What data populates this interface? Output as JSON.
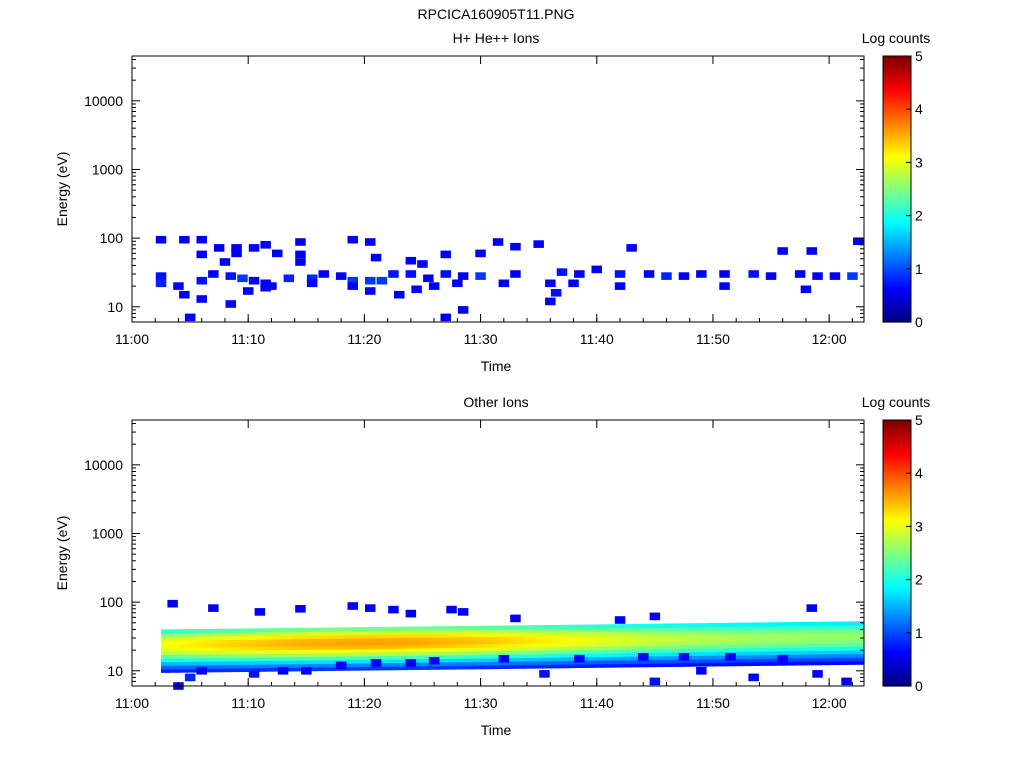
{
  "figure": {
    "title": "RPCICA160905T11.PNG"
  },
  "colorbar": {
    "label": "Log counts",
    "ticks": [
      "0",
      "1",
      "2",
      "3",
      "4",
      "5"
    ],
    "colormap": [
      "#00007f",
      "#0000ff",
      "#007fff",
      "#00ffff",
      "#7fff7f",
      "#ffff00",
      "#ff7f00",
      "#ff0000",
      "#7f0000"
    ]
  },
  "chart_data": [
    {
      "type": "heatmap",
      "title": "H+ He++ Ions",
      "xlabel": "Time",
      "ylabel": "Energy (eV)",
      "xlim": [
        "11:00",
        "12:03"
      ],
      "ylim": [
        6,
        45000
      ],
      "yscale": "log",
      "xticks": [
        "11:00",
        "11:10",
        "11:20",
        "11:30",
        "11:40",
        "11:50",
        "12:00"
      ],
      "yticks": [
        "10",
        "100",
        "1000",
        "10000"
      ],
      "zlim": [
        0,
        5
      ],
      "note_values": "log counts per time/energy bin",
      "cells": [
        [
          "11:02:30",
          95,
          0.6
        ],
        [
          "11:04:30",
          95,
          0.6
        ],
        [
          "11:06:00",
          95,
          0.6
        ],
        [
          "11:07:30",
          72,
          0.6
        ],
        [
          "11:09:00",
          72,
          0.6
        ],
        [
          "11:10:30",
          72,
          0.6
        ],
        [
          "11:11:30",
          80,
          0.6
        ],
        [
          "11:14:30",
          88,
          0.6
        ],
        [
          "11:19:00",
          95,
          0.6
        ],
        [
          "11:20:30",
          88,
          0.6
        ],
        [
          "11:27:00",
          58,
          0.6
        ],
        [
          "11:30:00",
          60,
          0.6
        ],
        [
          "11:31:30",
          88,
          0.6
        ],
        [
          "11:33:00",
          75,
          0.6
        ],
        [
          "11:35:00",
          82,
          0.6
        ],
        [
          "11:43:00",
          72,
          0.6
        ],
        [
          "11:56:00",
          65,
          0.6
        ],
        [
          "11:58:30",
          65,
          0.6
        ],
        [
          "12:02:30",
          90,
          0.6
        ],
        [
          "11:06:00",
          58,
          0.6
        ],
        [
          "11:09:00",
          60,
          0.6
        ],
        [
          "11:12:30",
          60,
          0.6
        ],
        [
          "11:14:30",
          58,
          0.6
        ],
        [
          "11:21:00",
          52,
          0.6
        ],
        [
          "11:24:00",
          47,
          0.6
        ],
        [
          "11:25:00",
          42,
          0.6
        ],
        [
          "11:08:00",
          45,
          0.6
        ],
        [
          "11:14:30",
          45,
          0.6
        ],
        [
          "11:02:30",
          28,
          0.7
        ],
        [
          "11:02:30",
          22,
          0.8
        ],
        [
          "11:04:00",
          20,
          0.6
        ],
        [
          "11:04:30",
          15,
          0.6
        ],
        [
          "11:06:00",
          24,
          0.7
        ],
        [
          "11:07:00",
          30,
          0.6
        ],
        [
          "11:08:30",
          28,
          0.7
        ],
        [
          "11:09:30",
          26,
          0.9
        ],
        [
          "11:10:30",
          24,
          0.6
        ],
        [
          "11:11:30",
          22,
          0.6
        ],
        [
          "11:12:00",
          20,
          0.6
        ],
        [
          "11:13:30",
          26,
          0.8
        ],
        [
          "11:15:30",
          26,
          0.8
        ],
        [
          "11:16:30",
          30,
          0.6
        ],
        [
          "11:18:00",
          28,
          0.6
        ],
        [
          "11:19:00",
          24,
          0.9
        ],
        [
          "11:20:30",
          24,
          0.9
        ],
        [
          "11:21:30",
          24,
          0.9
        ],
        [
          "11:22:30",
          30,
          0.7
        ],
        [
          "11:24:00",
          30,
          0.7
        ],
        [
          "11:25:30",
          26,
          0.6
        ],
        [
          "11:27:00",
          30,
          0.7
        ],
        [
          "11:28:30",
          28,
          0.6
        ],
        [
          "11:30:00",
          28,
          0.9
        ],
        [
          "11:32:00",
          22,
          0.6
        ],
        [
          "11:33:00",
          30,
          0.6
        ],
        [
          "11:36:00",
          22,
          0.6
        ],
        [
          "11:37:00",
          32,
          0.7
        ],
        [
          "11:38:30",
          30,
          0.6
        ],
        [
          "11:40:00",
          35,
          0.6
        ],
        [
          "11:42:00",
          30,
          0.7
        ],
        [
          "11:44:30",
          30,
          0.6
        ],
        [
          "11:46:00",
          28,
          0.8
        ],
        [
          "11:47:30",
          28,
          0.6
        ],
        [
          "11:49:00",
          30,
          0.6
        ],
        [
          "11:51:00",
          30,
          0.6
        ],
        [
          "11:53:30",
          30,
          0.7
        ],
        [
          "11:55:00",
          28,
          0.6
        ],
        [
          "11:57:30",
          30,
          0.6
        ],
        [
          "11:59:00",
          28,
          0.6
        ],
        [
          "12:00:30",
          28,
          0.6
        ],
        [
          "12:02:00",
          28,
          0.9
        ],
        [
          "11:05:00",
          7,
          0.6
        ],
        [
          "11:06:00",
          13,
          0.6
        ],
        [
          "11:08:30",
          11,
          0.6
        ],
        [
          "11:10:00",
          17,
          0.6
        ],
        [
          "11:11:30",
          19,
          0.6
        ],
        [
          "11:15:30",
          22,
          0.6
        ],
        [
          "11:19:00",
          20,
          0.6
        ],
        [
          "11:20:30",
          17,
          0.6
        ],
        [
          "11:23:00",
          15,
          0.6
        ],
        [
          "11:24:30",
          18,
          0.6
        ],
        [
          "11:26:00",
          20,
          0.6
        ],
        [
          "11:27:00",
          7,
          0.6
        ],
        [
          "11:28:30",
          9,
          0.6
        ],
        [
          "11:28:00",
          22,
          0.6
        ],
        [
          "11:36:30",
          16,
          0.7
        ],
        [
          "11:36:00",
          12,
          0.6
        ],
        [
          "11:38:00",
          22,
          0.6
        ],
        [
          "11:42:00",
          20,
          0.6
        ],
        [
          "11:51:00",
          20,
          0.6
        ],
        [
          "11:58:00",
          18,
          0.6
        ]
      ]
    },
    {
      "type": "heatmap",
      "title": "Other Ions",
      "xlabel": "Time",
      "ylabel": "Energy (eV)",
      "xlim": [
        "11:00",
        "12:03"
      ],
      "ylim": [
        6,
        45000
      ],
      "yscale": "log",
      "xticks": [
        "11:00",
        "11:10",
        "11:20",
        "11:30",
        "11:40",
        "11:50",
        "12:00"
      ],
      "yticks": [
        "10",
        "100",
        "1000",
        "10000"
      ],
      "zlim": [
        0,
        5
      ],
      "note_values": "log counts; continuous band ~10-40 eV from 11:02:30 to 12:03, peak ~3.5 near 11:20",
      "band": {
        "t_start": "11:02:30",
        "t_end": "12:03",
        "e_low": 9.5,
        "e_high": 40,
        "peak_log_counts": 3.6,
        "peak_energy": 24
      },
      "cells": [
        [
          "11:03:30",
          95,
          0.6
        ],
        [
          "11:07:00",
          82,
          0.6
        ],
        [
          "11:11:00",
          72,
          0.6
        ],
        [
          "11:14:30",
          80,
          0.6
        ],
        [
          "11:19:00",
          88,
          0.6
        ],
        [
          "11:20:30",
          82,
          0.6
        ],
        [
          "11:22:30",
          78,
          0.6
        ],
        [
          "11:24:00",
          68,
          0.6
        ],
        [
          "11:27:30",
          78,
          0.6
        ],
        [
          "11:28:30",
          72,
          0.6
        ],
        [
          "11:33:00",
          58,
          0.6
        ],
        [
          "11:42:00",
          55,
          0.6
        ],
        [
          "11:45:00",
          62,
          0.6
        ],
        [
          "11:58:30",
          82,
          0.6
        ],
        [
          "11:04:00",
          6,
          0.6
        ],
        [
          "11:05:00",
          8,
          0.8
        ],
        [
          "11:06:00",
          10,
          0.6
        ],
        [
          "11:10:30",
          9,
          0.7
        ],
        [
          "11:13:00",
          10,
          0.6
        ],
        [
          "11:15:00",
          10,
          0.6
        ],
        [
          "11:18:00",
          12,
          0.6
        ],
        [
          "11:21:00",
          13,
          0.6
        ],
        [
          "11:24:00",
          13,
          0.6
        ],
        [
          "11:26:00",
          14,
          0.6
        ],
        [
          "11:32:00",
          15,
          0.6
        ],
        [
          "11:35:30",
          9,
          0.7
        ],
        [
          "11:38:30",
          15,
          0.6
        ],
        [
          "11:44:00",
          16,
          0.6
        ],
        [
          "11:45:00",
          7,
          0.7
        ],
        [
          "11:47:30",
          16,
          0.6
        ],
        [
          "11:49:00",
          10,
          0.6
        ],
        [
          "11:51:30",
          16,
          0.6
        ],
        [
          "11:53:30",
          8,
          0.6
        ],
        [
          "11:56:00",
          15,
          0.6
        ],
        [
          "11:59:00",
          9,
          0.6
        ],
        [
          "12:01:30",
          7,
          0.6
        ]
      ]
    }
  ]
}
